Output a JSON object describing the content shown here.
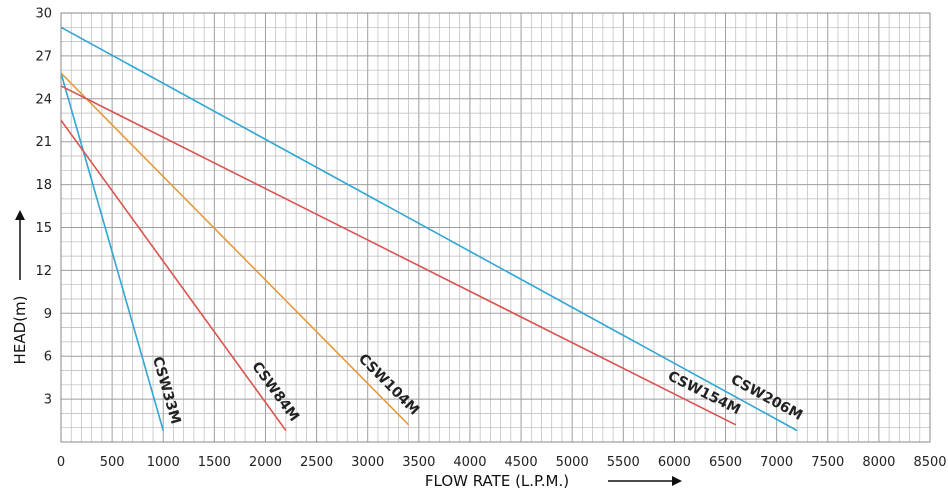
{
  "chart_data": {
    "type": "line",
    "xlabel": "FLOW RATE (L.P.M.)",
    "ylabel": "HEAD(m)",
    "xlim": [
      0,
      8500
    ],
    "ylim": [
      0,
      30
    ],
    "x_ticks": [
      "0",
      "500",
      "1000",
      "1500",
      "2000",
      "2500",
      "3000",
      "3500",
      "4000",
      "4500",
      "5000",
      "5500",
      "6000",
      "6500",
      "7000",
      "7500",
      "8000",
      "8500"
    ],
    "y_ticks": [
      "3",
      "6",
      "9",
      "12",
      "15",
      "18",
      "21",
      "24",
      "27",
      "30"
    ],
    "grid": true,
    "series": [
      {
        "name": "CSW33M",
        "color": "#2fa6d4",
        "x": [
          0,
          1000
        ],
        "y": [
          25.8,
          0.8
        ]
      },
      {
        "name": "CSW84M",
        "color": "#d9534f",
        "x": [
          0,
          2200
        ],
        "y": [
          22.5,
          0.8
        ]
      },
      {
        "name": "CSW104M",
        "color": "#e49a3c",
        "x": [
          0,
          3400
        ],
        "y": [
          25.8,
          1.2
        ]
      },
      {
        "name": "CSW154M",
        "color": "#d9534f",
        "x": [
          0,
          6600
        ],
        "y": [
          24.9,
          1.2
        ]
      },
      {
        "name": "CSW206M",
        "color": "#2fa6d4",
        "x": [
          0,
          7200
        ],
        "y": [
          29.0,
          0.8
        ]
      }
    ]
  }
}
